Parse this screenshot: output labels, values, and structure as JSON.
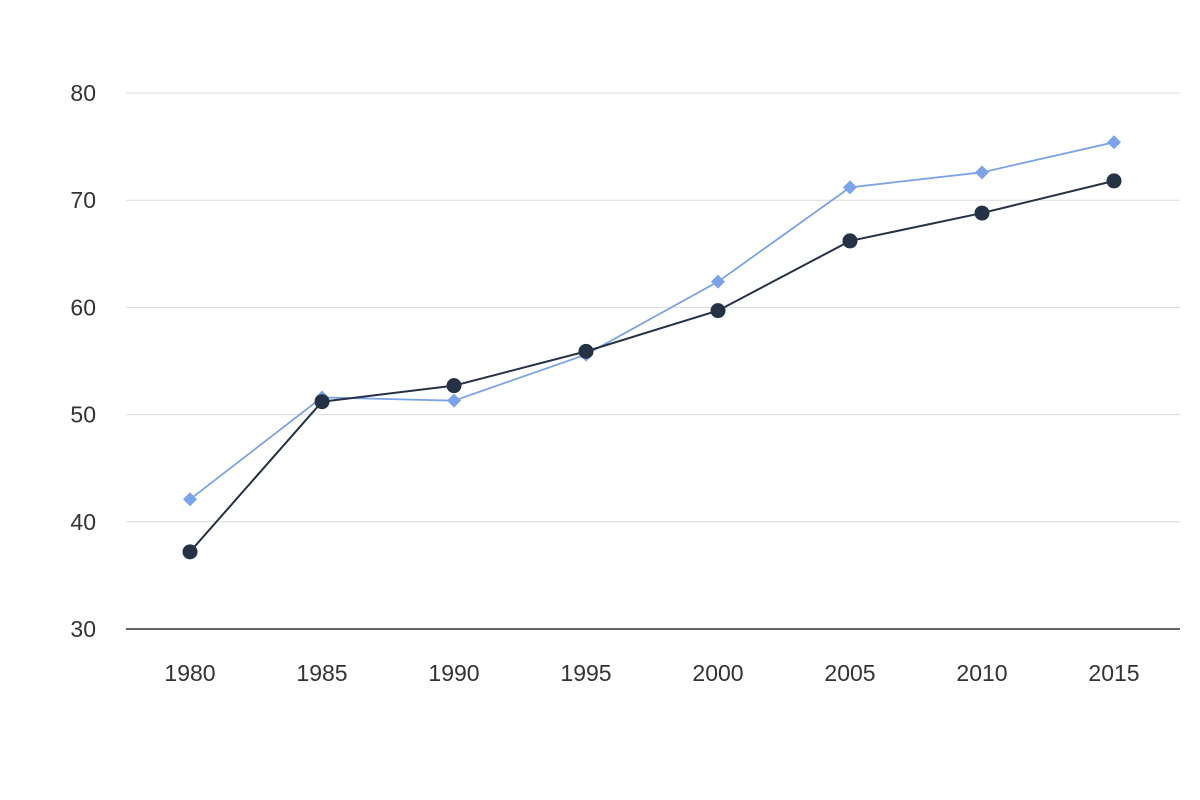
{
  "chart_data": {
    "type": "line",
    "x": [
      1980,
      1985,
      1990,
      1995,
      2000,
      2005,
      2010,
      2015
    ],
    "x_tick_labels": [
      "1980",
      "1985",
      "1990",
      "1995",
      "2000",
      "2005",
      "2010",
      "2015"
    ],
    "y_tick_values": [
      30,
      40,
      50,
      60,
      70,
      80
    ],
    "y_tick_labels": [
      "30",
      "40",
      "50",
      "60",
      "70",
      "80"
    ],
    "ylim": [
      30,
      80
    ],
    "grid": true,
    "legend": "none",
    "series": [
      {
        "marker": "circle",
        "color": "#253246",
        "values": [
          37.2,
          51.2,
          52.7,
          55.9,
          59.7,
          66.2,
          68.8,
          71.8
        ]
      },
      {
        "marker": "diamond",
        "color": "#7ba3ea",
        "values": [
          42.1,
          51.6,
          51.3,
          55.6,
          62.4,
          71.2,
          72.6,
          75.4
        ]
      }
    ]
  }
}
